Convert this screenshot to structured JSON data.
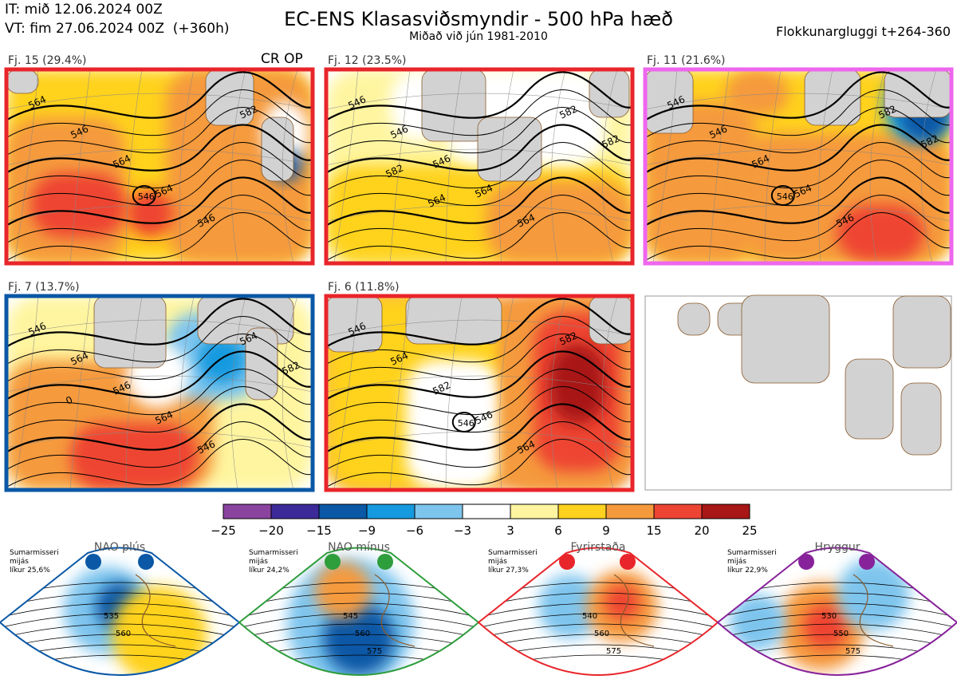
{
  "header": {
    "it_line": "IT: mið 12.06.2024 00Z",
    "vt_line": "VT: fim 27.06.2024 00Z  (+360h)",
    "title": "EC-ENS Klasasviðsmyndir - 500 hPa hæð",
    "subtitle": "Miðað við jún 1981-2010",
    "window": "Flokkunargluggi t+264-360"
  },
  "colors": {
    "red": "#e8252a",
    "magenta": "#ee66ee",
    "blue": "#0a58a6",
    "green": "#2e9d3c",
    "purple": "#88229a",
    "land": "#d2d2d2",
    "coast": "#8a5a2a"
  },
  "chart_data": {
    "type": "heatmap",
    "title": "EC-ENS Klasasviðsmyndir - 500 hPa hæð",
    "panels": [
      {
        "label": "Fj. 15 (29.4%)",
        "tag": "CR OP",
        "border": "red",
        "contours": [
          "564",
          "546",
          "564",
          "564",
          "546",
          "582"
        ],
        "centers": [
          {
            "kind": "low",
            "value": "546"
          }
        ]
      },
      {
        "label": "Fj. 12 (23.5%)",
        "tag": "",
        "border": "red",
        "contours": [
          "546",
          "546",
          "546",
          "564",
          "564",
          "582",
          "582",
          "582",
          "564"
        ],
        "centers": []
      },
      {
        "label": "Fj. 11 (21.6%)",
        "tag": "",
        "border": "magenta",
        "contours": [
          "546",
          "546",
          "564",
          "564",
          "546",
          "582",
          "582"
        ],
        "centers": [
          {
            "kind": "low",
            "value": "546"
          }
        ]
      },
      {
        "label": "Fj. 7 (13.7%)",
        "tag": "",
        "border": "blue",
        "contours": [
          "546",
          "564",
          "546",
          "564",
          "546",
          "564",
          "582",
          "0"
        ],
        "centers": []
      },
      {
        "label": "Fj. 6 (11.8%)",
        "tag": "",
        "border": "red",
        "contours": [
          "546",
          "564",
          "582",
          "546",
          "564",
          "582"
        ],
        "centers": [
          {
            "kind": "low",
            "value": "546"
          }
        ]
      }
    ],
    "colorbar": {
      "ticks": [
        "−25",
        "−20",
        "−15",
        "−9",
        "−6",
        "−3",
        "3",
        "6",
        "9",
        "15",
        "20",
        "25"
      ],
      "colors": [
        "#8a44a0",
        "#3d2a9a",
        "#0a58a6",
        "#169adf",
        "#7ec5ee",
        "#ffffff",
        "#fff5a0",
        "#ffd21f",
        "#f59a3c",
        "#ee4433",
        "#a81616"
      ]
    },
    "regimes": [
      {
        "name": "NAO plús",
        "color": "blue",
        "season": "Sumarmisseri",
        "freq": "mijás",
        "prob": "líkur 25,6%",
        "contours": [
          "535",
          "560"
        ]
      },
      {
        "name": "NAO mínus",
        "color": "green",
        "season": "Sumarmisseri",
        "freq": "mijás",
        "prob": "líkur 24,2%",
        "contours": [
          "545",
          "560",
          "575"
        ]
      },
      {
        "name": "Fyrirstaða",
        "color": "red",
        "season": "Sumarmisseri",
        "freq": "mijás",
        "prob": "líkur 27,3%",
        "contours": [
          "540",
          "560",
          "575"
        ]
      },
      {
        "name": "Hryggur",
        "color": "purple",
        "season": "Sumarmisseri",
        "freq": "mijás",
        "prob": "líkur 22,9%",
        "contours": [
          "530",
          "550",
          "575"
        ]
      }
    ]
  }
}
